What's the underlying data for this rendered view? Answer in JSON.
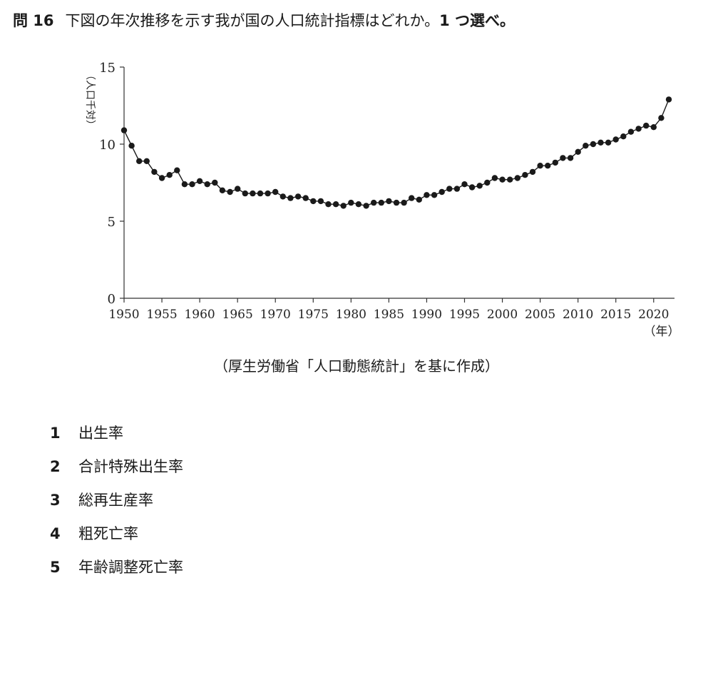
{
  "question": {
    "number": "問 16",
    "text": "下図の年次推移を示す我が国の人口統計指標はどれか。",
    "pick": "1 つ選べ。"
  },
  "chart_data": {
    "type": "line",
    "title": "",
    "ylabel": "（人口千対）",
    "xlabel": "（年）",
    "ylim": [
      0,
      15
    ],
    "xlim": [
      1950,
      2022
    ],
    "y_ticks": [
      "0",
      "5",
      "10",
      "15"
    ],
    "x_ticks": [
      "1950",
      "1955",
      "1960",
      "1965",
      "1970",
      "1975",
      "1980",
      "1985",
      "1990",
      "1995",
      "2000",
      "2005",
      "2010",
      "2015",
      "2020"
    ],
    "grid": false,
    "marker": "filled-circle",
    "series": [
      {
        "x": [
          1950,
          1951,
          1952,
          1953,
          1954,
          1955,
          1956,
          1957,
          1958,
          1959,
          1960,
          1961,
          1962,
          1963,
          1964,
          1965,
          1966,
          1967,
          1968,
          1969,
          1970,
          1971,
          1972,
          1973,
          1974,
          1975,
          1976,
          1977,
          1978,
          1979,
          1980,
          1981,
          1982,
          1983,
          1984,
          1985,
          1986,
          1987,
          1988,
          1989,
          1990,
          1991,
          1992,
          1993,
          1994,
          1995,
          1996,
          1997,
          1998,
          1999,
          2000,
          2001,
          2002,
          2003,
          2004,
          2005,
          2006,
          2007,
          2008,
          2009,
          2010,
          2011,
          2012,
          2013,
          2014,
          2015,
          2016,
          2017,
          2018,
          2019,
          2020,
          2021,
          2022
        ],
        "values": [
          10.9,
          9.9,
          8.9,
          8.9,
          8.2,
          7.8,
          8.0,
          8.3,
          7.4,
          7.4,
          7.6,
          7.4,
          7.5,
          7.0,
          6.9,
          7.1,
          6.8,
          6.8,
          6.8,
          6.8,
          6.9,
          6.6,
          6.5,
          6.6,
          6.5,
          6.3,
          6.3,
          6.1,
          6.1,
          6.0,
          6.2,
          6.1,
          6.0,
          6.2,
          6.2,
          6.3,
          6.2,
          6.2,
          6.5,
          6.4,
          6.7,
          6.7,
          6.9,
          7.1,
          7.1,
          7.4,
          7.2,
          7.3,
          7.5,
          7.8,
          7.7,
          7.7,
          7.8,
          8.0,
          8.2,
          8.6,
          8.6,
          8.8,
          9.1,
          9.1,
          9.5,
          9.9,
          10.0,
          10.1,
          10.1,
          10.3,
          10.5,
          10.8,
          11.0,
          11.2,
          11.1,
          11.7,
          12.9
        ]
      }
    ]
  },
  "source_note": "（厚生労働省「人口動態統計」を基に作成）",
  "options": [
    {
      "num": "1",
      "label": "出生率"
    },
    {
      "num": "2",
      "label": "合計特殊出生率"
    },
    {
      "num": "3",
      "label": "総再生産率"
    },
    {
      "num": "4",
      "label": "粗死亡率"
    },
    {
      "num": "5",
      "label": "年齢調整死亡率"
    }
  ]
}
